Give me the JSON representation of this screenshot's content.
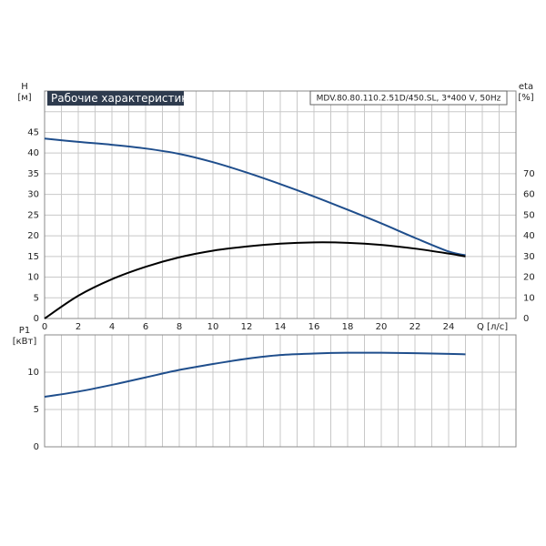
{
  "title": "Рабочие характеристики",
  "model": "MDV.80.80.110.2.51D/450.SL, 3*400 V, 50Hz",
  "chart_data": [
    {
      "type": "line",
      "y_label": "H",
      "y_unit": "[м]",
      "y2_label": "eta",
      "y2_unit": "[%]",
      "x_label": "Q [л/с]",
      "x": [
        0,
        2,
        4,
        6,
        8,
        10,
        12,
        14,
        16,
        18,
        20,
        22,
        24,
        25
      ],
      "xlim": [
        0,
        28
      ],
      "xticks": [
        0,
        2,
        4,
        6,
        8,
        10,
        12,
        14,
        16,
        18,
        20,
        22,
        24
      ],
      "ylim": [
        0,
        55
      ],
      "yticks": [
        0,
        5,
        10,
        15,
        20,
        25,
        30,
        35,
        40,
        45
      ],
      "y2lim": [
        0,
        110
      ],
      "y2ticks": [
        0,
        10,
        20,
        30,
        40,
        50,
        60,
        70
      ],
      "grid": true,
      "series": [
        {
          "color": "#1f4e8c",
          "values": [
            43.5,
            42.7,
            42,
            41.1,
            39.8,
            37.8,
            35.3,
            32.5,
            29.5,
            26.3,
            23,
            19.5,
            16.2,
            15.3
          ]
        },
        {
          "color": "#000000",
          "axis": "y2",
          "values": [
            0,
            11,
            19,
            25,
            29.6,
            32.8,
            34.8,
            36.2,
            36.8,
            36.6,
            35.6,
            33.8,
            31.4,
            30
          ]
        }
      ]
    },
    {
      "type": "line",
      "y_label": "P1",
      "y_unit": "[кВт]",
      "x": [
        0,
        2,
        4,
        6,
        8,
        10,
        12,
        14,
        16,
        18,
        20,
        22,
        24,
        25
      ],
      "xlim": [
        0,
        28
      ],
      "xticks": [
        0,
        2,
        4,
        6,
        8,
        10,
        12,
        14,
        16,
        18,
        20,
        22,
        24
      ],
      "ylim": [
        0,
        15
      ],
      "yticks": [
        0,
        5,
        10
      ],
      "grid": true,
      "series": [
        {
          "color": "#1f4e8c",
          "values": [
            6.7,
            7.4,
            8.3,
            9.3,
            10.3,
            11.1,
            11.8,
            12.3,
            12.5,
            12.6,
            12.6,
            12.55,
            12.45,
            12.4
          ]
        }
      ]
    }
  ]
}
